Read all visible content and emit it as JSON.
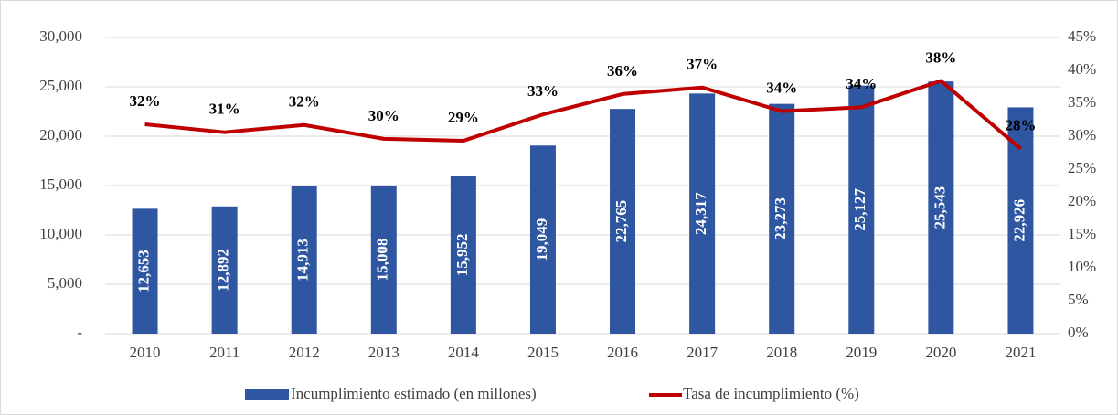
{
  "chart_data": {
    "type": "bar",
    "categories": [
      "2010",
      "2011",
      "2012",
      "2013",
      "2014",
      "2015",
      "2016",
      "2017",
      "2018",
      "2019",
      "2020",
      "2021"
    ],
    "series": [
      {
        "name": "Incumplimiento estimado (en millones)",
        "type": "bar",
        "color": "#2f56a0",
        "values": [
          12653,
          12892,
          14913,
          15008,
          15952,
          19049,
          22765,
          24317,
          23273,
          25127,
          25543,
          22926
        ],
        "value_labels": [
          "12,653",
          "12,892",
          "14,913",
          "15,008",
          "15,952",
          "19,049",
          "22,765",
          "24,317",
          "23,273",
          "25,127",
          "25,543",
          "22,926"
        ]
      },
      {
        "name": "Tasa de incumplimiento (%)",
        "type": "line",
        "axis": "y2",
        "color": "#c00000",
        "values": [
          31.8,
          30.6,
          31.7,
          29.6,
          29.3,
          33.3,
          36.4,
          37.4,
          33.8,
          34.4,
          38.4,
          28.1
        ],
        "value_labels": [
          "32%",
          "31%",
          "32%",
          "30%",
          "29%",
          "33%",
          "36%",
          "37%",
          "34%",
          "34%",
          "38%",
          "28%"
        ]
      }
    ],
    "ylim": [
      0,
      30000
    ],
    "yticks": [
      {
        "value": 0,
        "label": "-"
      },
      {
        "value": 5000,
        "label": "5,000"
      },
      {
        "value": 10000,
        "label": "10,000"
      },
      {
        "value": 15000,
        "label": "15,000"
      },
      {
        "value": 20000,
        "label": "20,000"
      },
      {
        "value": 25000,
        "label": "25,000"
      },
      {
        "value": 30000,
        "label": "30,000"
      }
    ],
    "y2lim": [
      0,
      45
    ],
    "y2ticks": [
      {
        "value": 0,
        "label": "0%"
      },
      {
        "value": 5,
        "label": "5%"
      },
      {
        "value": 10,
        "label": "10%"
      },
      {
        "value": 15,
        "label": "15%"
      },
      {
        "value": 20,
        "label": "20%"
      },
      {
        "value": 25,
        "label": "25%"
      },
      {
        "value": 30,
        "label": "30%"
      },
      {
        "value": 35,
        "label": "35%"
      },
      {
        "value": 40,
        "label": "40%"
      },
      {
        "value": 45,
        "label": "45%"
      }
    ],
    "grid": true,
    "legend": "bottom"
  }
}
